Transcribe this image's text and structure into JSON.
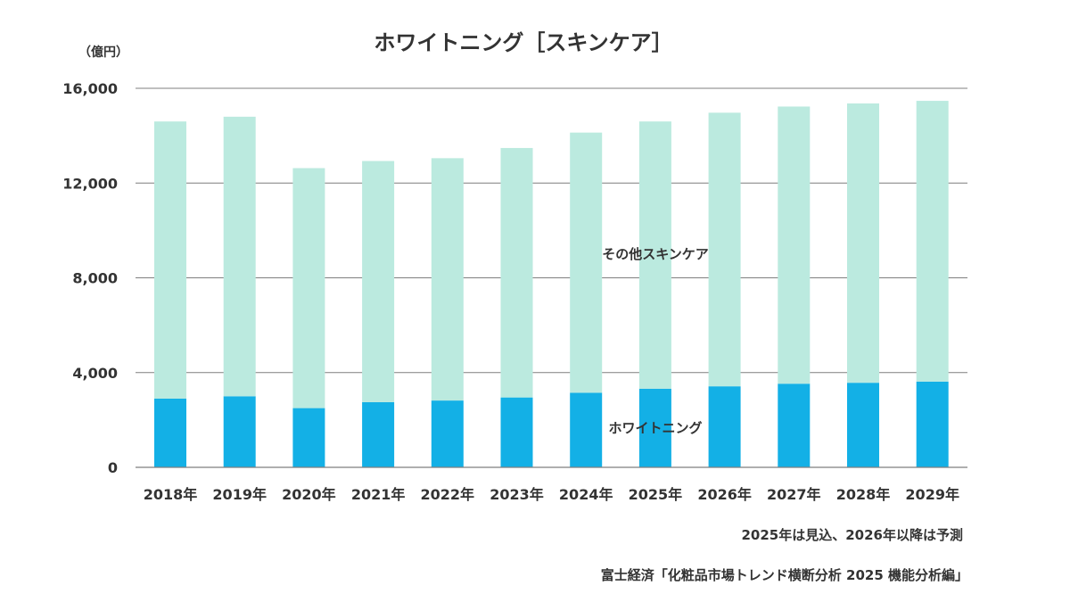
{
  "chart_data": {
    "type": "bar",
    "stacked": true,
    "title": "ホワイトニング［スキンケア］",
    "unit_label": "（億円）",
    "categories": [
      "2018年",
      "2019年",
      "2020年",
      "2021年",
      "2022年",
      "2023年",
      "2024年",
      "2025年",
      "2026年",
      "2027年",
      "2028年",
      "2029年"
    ],
    "series": [
      {
        "name": "ホワイトニング",
        "color": "#13b0e6",
        "values": [
          2900,
          3000,
          2500,
          2750,
          2820,
          2950,
          3150,
          3320,
          3420,
          3530,
          3570,
          3620
        ]
      },
      {
        "name": "その他スキンケア",
        "color": "#bbeadf",
        "values": [
          11700,
          11800,
          10130,
          10180,
          10230,
          10530,
          10980,
          11280,
          11550,
          11700,
          11790,
          11850
        ]
      }
    ],
    "ylim": [
      0,
      16000
    ],
    "yticks": [
      0,
      4000,
      8000,
      12000,
      16000
    ],
    "ytick_labels": [
      "0",
      "4,000",
      "8,000",
      "12,000",
      "16,000"
    ],
    "grid": true,
    "legend": "inline labels on chart",
    "notes": [
      "2025年は見込、2026年以降は予測",
      "富士経済「化粧品市場トレンド横断分析 2025 機能分析編」"
    ]
  }
}
